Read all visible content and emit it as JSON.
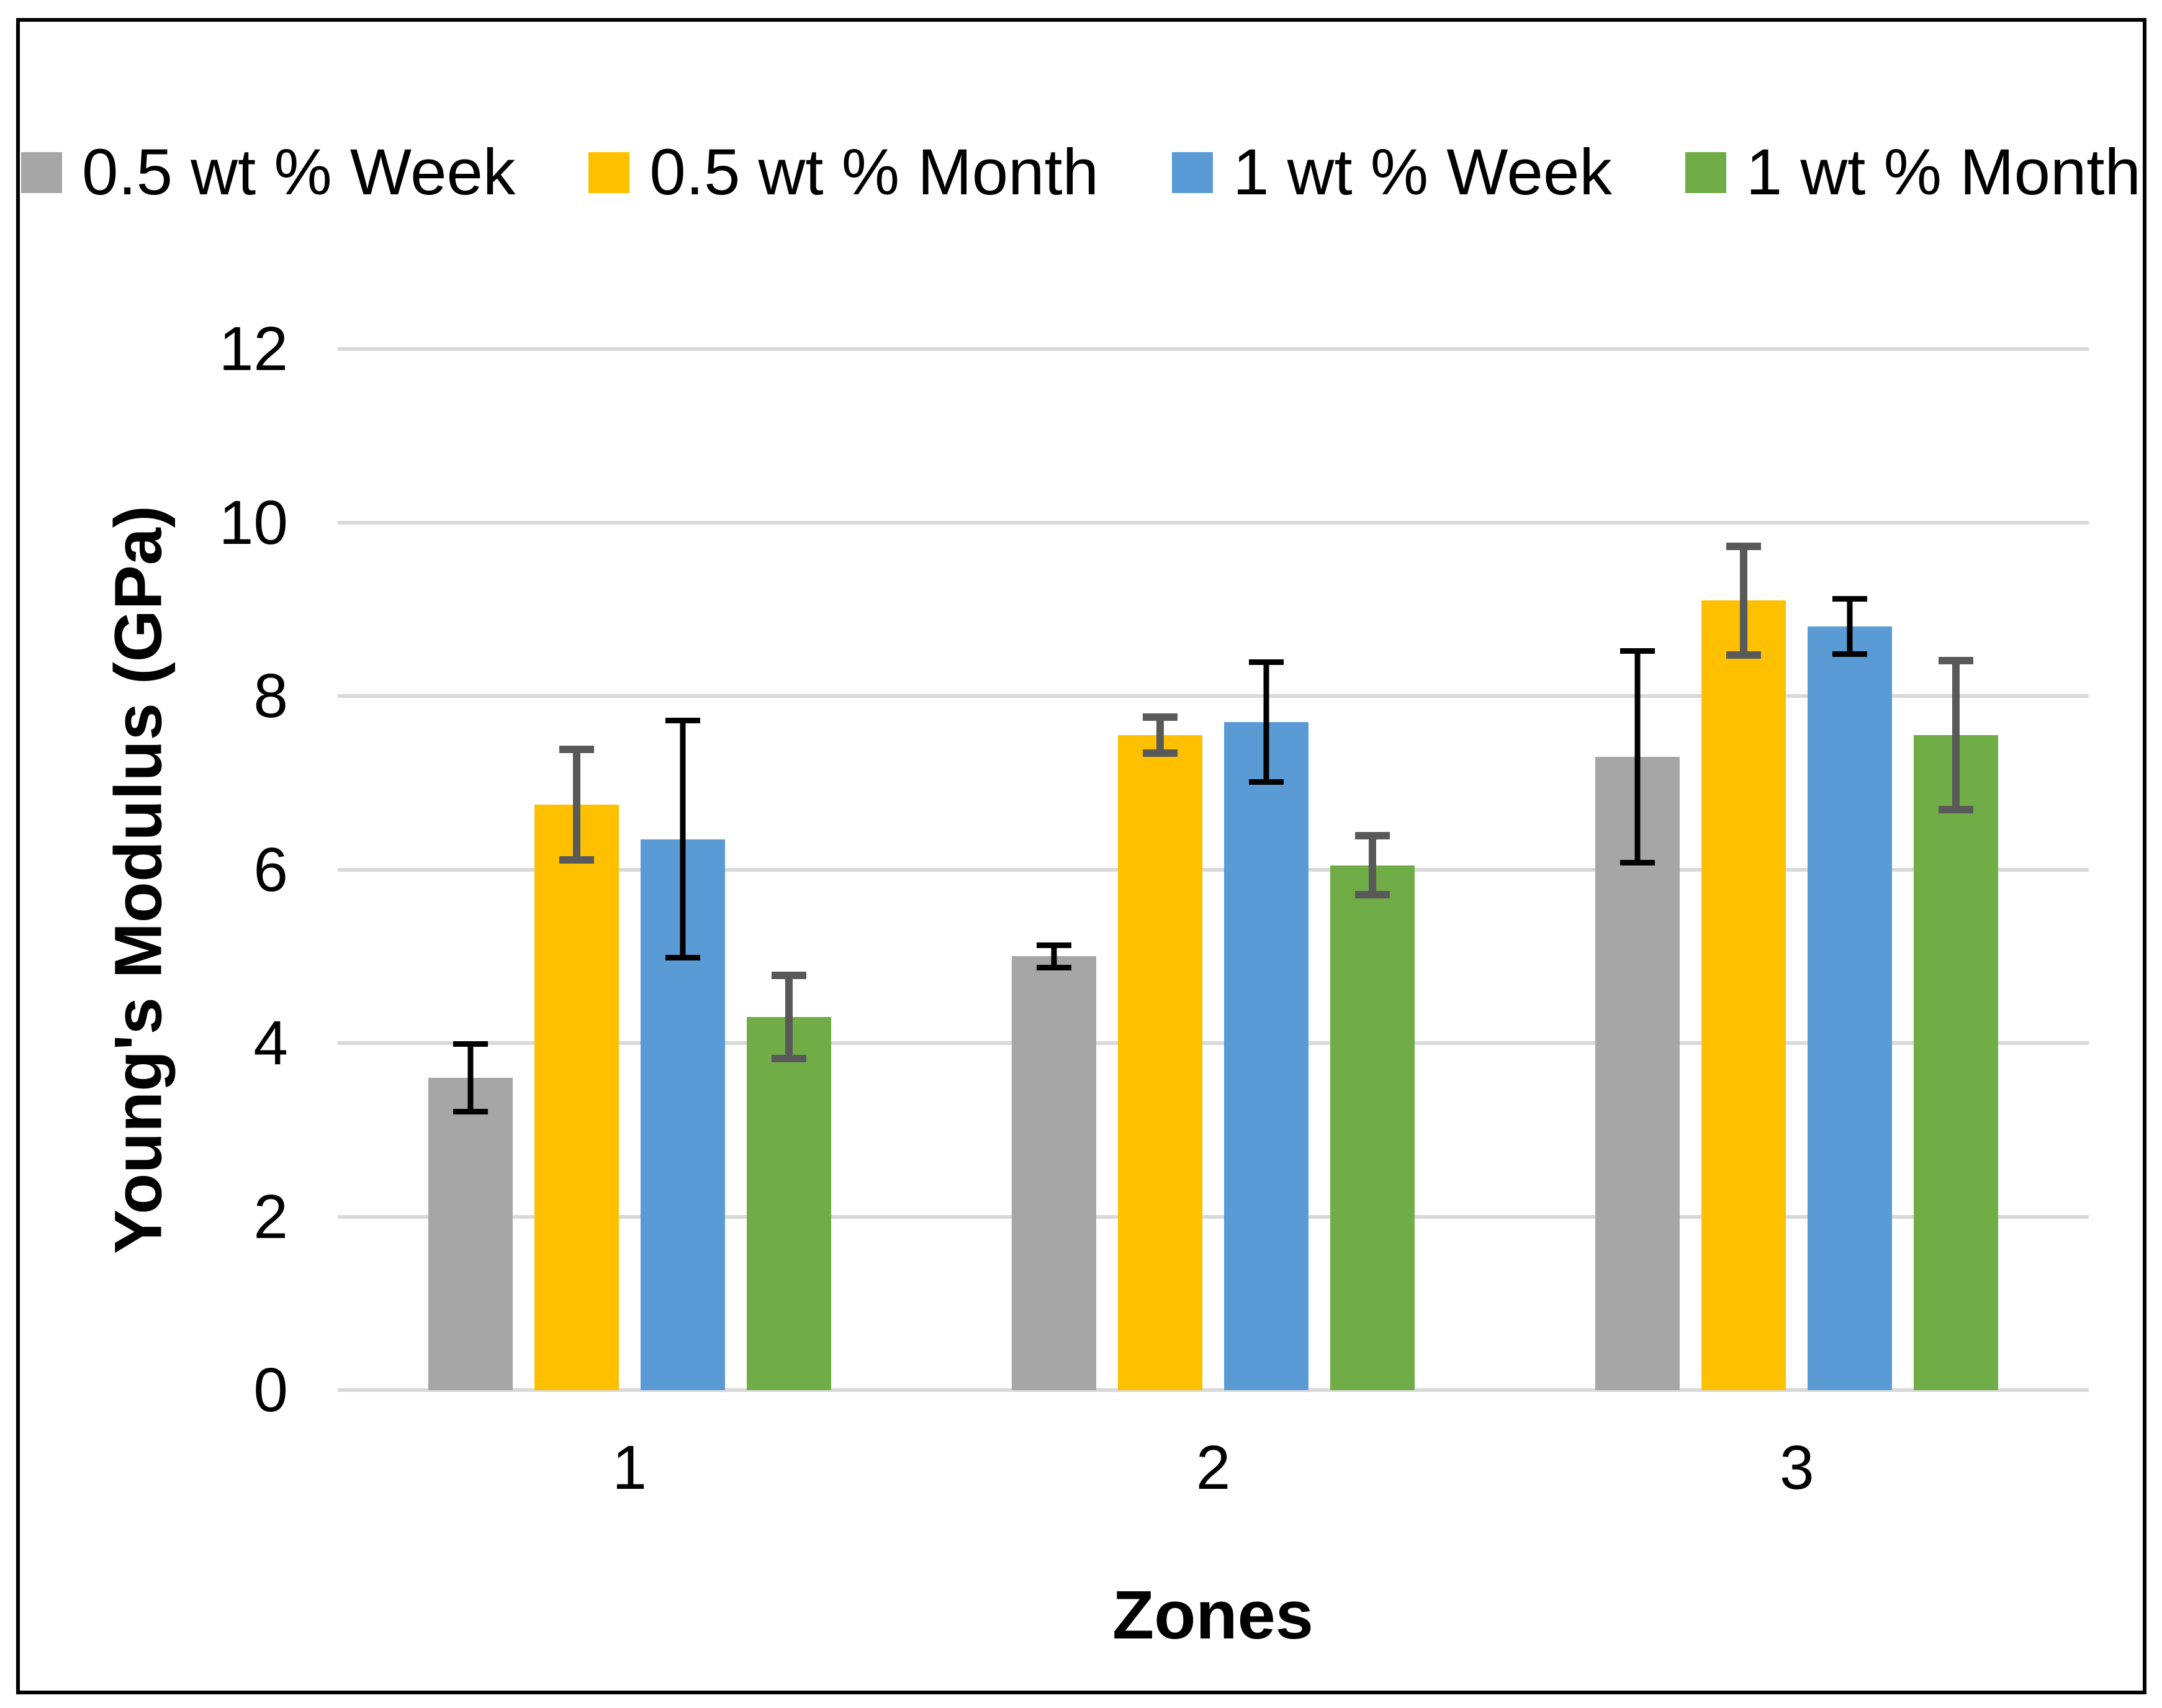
{
  "colors": {
    "background": "#ffffff",
    "frame_border": "#000000",
    "gridline": "#d9d9d9",
    "text": "#000000"
  },
  "chart_data": {
    "type": "bar",
    "title": "",
    "xlabel": "Zones",
    "ylabel": "Young's Modulus (GPa)",
    "categories": [
      "1",
      "2",
      "3"
    ],
    "ylim": [
      0,
      12
    ],
    "ytick_step": 2,
    "yticks": [
      0,
      2,
      4,
      6,
      8,
      10,
      12
    ],
    "grid": "horizontal",
    "legend_position": "top",
    "error_bars": true,
    "series": [
      {
        "name": "0.5 wt % Week",
        "color": "#a6a6a6",
        "error_color": "#000000",
        "values": [
          3.6,
          5.0,
          7.3
        ],
        "errors": [
          0.42,
          0.16,
          1.25
        ]
      },
      {
        "name": "0.5 wt % Month",
        "color": "#ffc000",
        "error_color": "#595959",
        "values": [
          6.75,
          7.55,
          9.1
        ],
        "errors": [
          0.68,
          0.25,
          0.67
        ]
      },
      {
        "name": "1 wt % Week",
        "color": "#5b9bd5",
        "error_color": "#000000",
        "values": [
          6.35,
          7.7,
          8.8
        ],
        "errors": [
          1.4,
          0.72,
          0.35
        ]
      },
      {
        "name": "1 wt % Month",
        "color": "#70ad47",
        "error_color": "#595959",
        "values": [
          4.3,
          6.05,
          7.55
        ],
        "errors": [
          0.52,
          0.38,
          0.9
        ]
      }
    ]
  }
}
